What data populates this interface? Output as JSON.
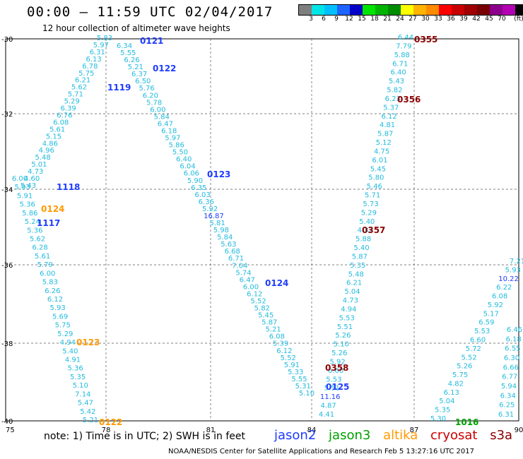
{
  "header": {
    "title": "00:00 – 11:59 UTC 02/04/2017",
    "subtitle": "12 hour collection of altimeter wave heights"
  },
  "colorbar": {
    "colors": [
      "#7f7f7f",
      "#00e5e5",
      "#00bfff",
      "#1e64ff",
      "#0000c8",
      "#00e500",
      "#00b400",
      "#008c00",
      "#ffff00",
      "#ffb400",
      "#ff8c00",
      "#ff0000",
      "#c80000",
      "#a00000",
      "#780000",
      "#8c008c",
      "#b400b4",
      "#000000"
    ],
    "labels": [
      "3",
      "6",
      "9",
      "12",
      "15",
      "18",
      "21",
      "24",
      "27",
      "30",
      "33",
      "36",
      "39",
      "42",
      "45",
      "70",
      "(ft)"
    ]
  },
  "axes": {
    "x_labels": [
      "75",
      "78",
      "81",
      "84",
      "87",
      "90"
    ],
    "y_labels": [
      "-30",
      "-32",
      "-34",
      "-36",
      "-38",
      "-40"
    ]
  },
  "track_colors": {
    "jason2": "#00b0e0",
    "jason3": "#00a000",
    "altika": "#e09000",
    "cryosat": "#8b0000",
    "s3a": "#8b0000"
  },
  "time_labels": [
    {
      "text": "0121",
      "sat": "jason2"
    },
    {
      "text": "0122",
      "sat": "jason2"
    },
    {
      "text": "1119",
      "sat": "jason2"
    },
    {
      "text": "1118",
      "sat": "jason2"
    },
    {
      "text": "1117",
      "sat": "jason2"
    },
    {
      "text": "0124",
      "sat": "altika"
    },
    {
      "text": "0123",
      "sat": "jason2"
    },
    {
      "text": "0124",
      "sat": "jason2"
    },
    {
      "text": "0125",
      "sat": "jason2"
    },
    {
      "text": "0123",
      "sat": "altika"
    },
    {
      "text": "0122",
      "sat": "altika"
    },
    {
      "text": "0355",
      "sat": "cryosat"
    },
    {
      "text": "0356",
      "sat": "cryosat"
    },
    {
      "text": "0357",
      "sat": "cryosat"
    },
    {
      "text": "0358",
      "sat": "cryosat"
    },
    {
      "text": "1016",
      "sat": "jason3"
    }
  ],
  "tracks": {
    "a_up": [
      "5.43",
      "4.60",
      "4.73",
      "5.01",
      "5.48",
      "4.96",
      "4.86",
      "5.15",
      "5.61",
      "6.08",
      "6.76",
      "6.39",
      "5.29",
      "5.71",
      "5.62",
      "6.21",
      "5.75",
      "6.78",
      "6.13",
      "6.31",
      "5.97",
      "5.83"
    ],
    "b_down": [
      "6.34",
      "5.55",
      "6.26",
      "5.21",
      "6.37",
      "6.50",
      "5.76",
      "6.20",
      "5.78",
      "6.00",
      "5.84",
      "6.47",
      "6.18",
      "5.97",
      "5.86",
      "5.50",
      "6.40",
      "6.04",
      "6.06",
      "5.90",
      "6.35",
      "6.03",
      "6.36",
      "5.92",
      "16.87",
      "5.81",
      "5.98",
      "5.84",
      "5.63",
      "6.68",
      "6.71",
      "7.04",
      "5.74",
      "6.47",
      "6.00",
      "6.12",
      "5.52",
      "5.82",
      "5.45",
      "5.87",
      "5.21",
      "6.08",
      "5.39",
      "6.12",
      "5.52",
      "5.91",
      "5.33",
      "5.55",
      "5.31",
      "5.10"
    ],
    "c_down": [
      "6.00",
      "5.93",
      "5.91",
      "5.36",
      "5.86",
      "5.24",
      "5.36",
      "5.62",
      "6.28",
      "5.61",
      "5.79",
      "6.00",
      "5.83",
      "6.26",
      "6.12",
      "5.93",
      "5.69",
      "5.75",
      "5.29",
      "4.94",
      "5.40",
      "4.91",
      "5.36",
      "5.35",
      "5.10",
      "7.14",
      "5.47",
      "5.42",
      "5.21"
    ],
    "d_up": [
      "4.41",
      "4.87",
      "11.16",
      "5.51",
      "5.53",
      "6.60",
      "5.92",
      "5.26",
      "5.10",
      "5.26",
      "5.51",
      "5.53",
      "4.94",
      "4.73",
      "5.04",
      "6.21",
      "5.48",
      "5.35",
      "5.87",
      "5.40",
      "5.88",
      "4.32",
      "5.40",
      "5.29",
      "5.73",
      "5.71",
      "5.46",
      "5.80",
      "5.45",
      "6.01",
      "4.75",
      "5.12",
      "5.87",
      "4.81",
      "6.12",
      "5.37",
      "6.23",
      "5.82",
      "5.43",
      "6.40",
      "6.71",
      "5.88",
      "7.79",
      "6.44"
    ],
    "e_up": [
      "5.30",
      "5.35",
      "5.04",
      "6.13",
      "4.82",
      "5.75",
      "5.26",
      "5.52",
      "5.72",
      "6.60",
      "5.53",
      "6.59",
      "5.17",
      "5.92",
      "6.08",
      "6.22",
      "10.22",
      "5.93",
      "7.21"
    ],
    "f_down": [
      "6.46",
      "6.18",
      "6.55",
      "6.30",
      "6.66",
      "6.77",
      "5.94",
      "6.34",
      "6.25",
      "6.31"
    ]
  },
  "footer": {
    "note": "note: 1) Time is in UTC; 2) SWH is in feet",
    "legend": [
      "jason2",
      "jason3",
      "altika",
      "cryosat",
      "s3a"
    ],
    "credit": "NOAA/NESDIS Center for Satellite Applications and Research    Feb  5 13:27:16 UTC 2017"
  }
}
